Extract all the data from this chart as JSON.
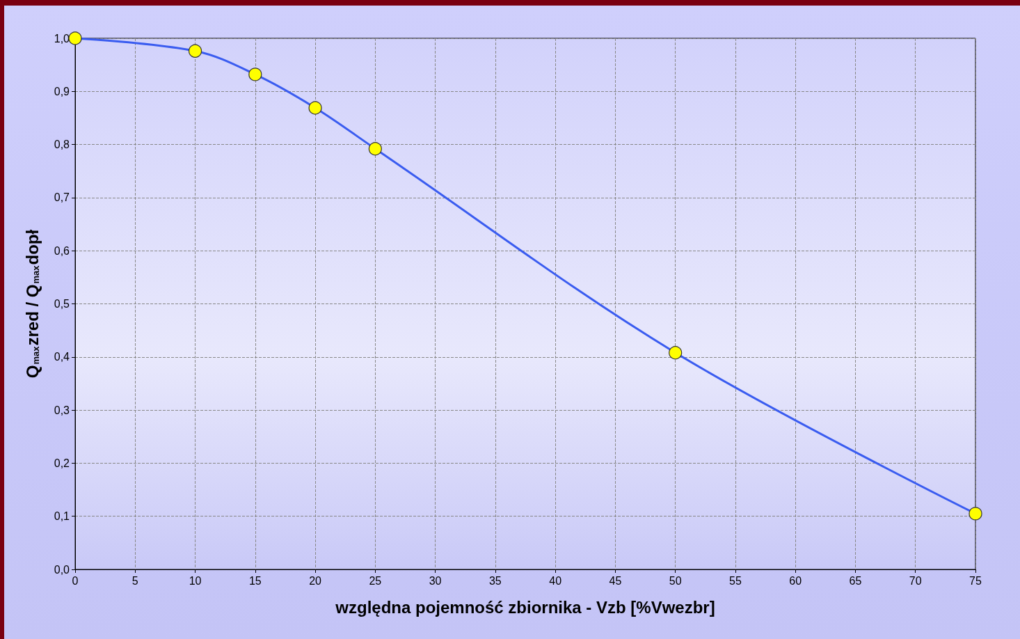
{
  "chart_data": {
    "type": "line",
    "xlabel": "względna pojemność zbiornika - Vzb [%Vwezbr]",
    "ylabel": "Q$_{max}$zred / Q$_{max}$dopł",
    "x": [
      0,
      10,
      15,
      20,
      25,
      50,
      75
    ],
    "series": [
      {
        "color": "#3a5cf0",
        "values": [
          1.0,
          0.976,
          0.932,
          0.869,
          0.792,
          0.408,
          0.105
        ]
      }
    ],
    "xlim": [
      0,
      75
    ],
    "xticks": [
      0,
      5,
      10,
      15,
      20,
      25,
      30,
      35,
      40,
      45,
      50,
      55,
      60,
      65,
      70,
      75
    ],
    "ylim": [
      0,
      1
    ],
    "yticks": [
      {
        "value": 0,
        "label": "0,0"
      },
      {
        "value": 0.1,
        "label": "0,1"
      },
      {
        "value": 0.2,
        "label": "0,2"
      },
      {
        "value": 0.3,
        "label": "0,3"
      },
      {
        "value": 0.4,
        "label": "0,4"
      },
      {
        "value": 0.5,
        "label": "0,5"
      },
      {
        "value": 0.6,
        "label": "0,6"
      },
      {
        "value": 0.7,
        "label": "0,7"
      },
      {
        "value": 0.8,
        "label": "0,8"
      },
      {
        "value": 0.9,
        "label": "0,9"
      },
      {
        "value": 1,
        "label": "1,0"
      }
    ],
    "grid": true,
    "marker": "circle",
    "line_style": "solid"
  }
}
